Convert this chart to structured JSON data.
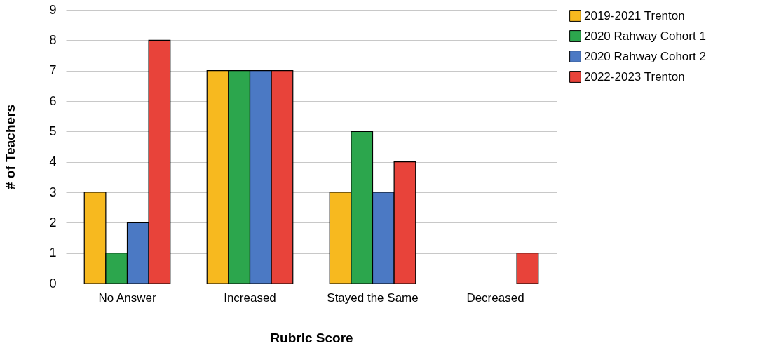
{
  "chart_data": {
    "type": "bar",
    "xlabel": "Rubric Score",
    "ylabel": "# of Teachers",
    "categories": [
      "No Answer",
      "Increased",
      "Stayed the Same",
      "Decreased"
    ],
    "series": [
      {
        "name": "2019-2021 Trenton",
        "color": "#f7b91f",
        "values": [
          3,
          7,
          3,
          null
        ]
      },
      {
        "name": "2020 Rahway Cohort 1",
        "color": "#2ca64d",
        "values": [
          1,
          7,
          5,
          null
        ]
      },
      {
        "name": "2020 Rahway Cohort 2",
        "color": "#4b79c4",
        "values": [
          2,
          7,
          3,
          null
        ]
      },
      {
        "name": "2022-2023 Trenton",
        "color": "#e8433a",
        "values": [
          8,
          7,
          4,
          1
        ]
      }
    ],
    "ylim": [
      0,
      9
    ],
    "yticks": [
      0,
      1,
      2,
      3,
      4,
      5,
      6,
      7,
      8,
      9
    ],
    "grid": "y",
    "legend": "right"
  }
}
